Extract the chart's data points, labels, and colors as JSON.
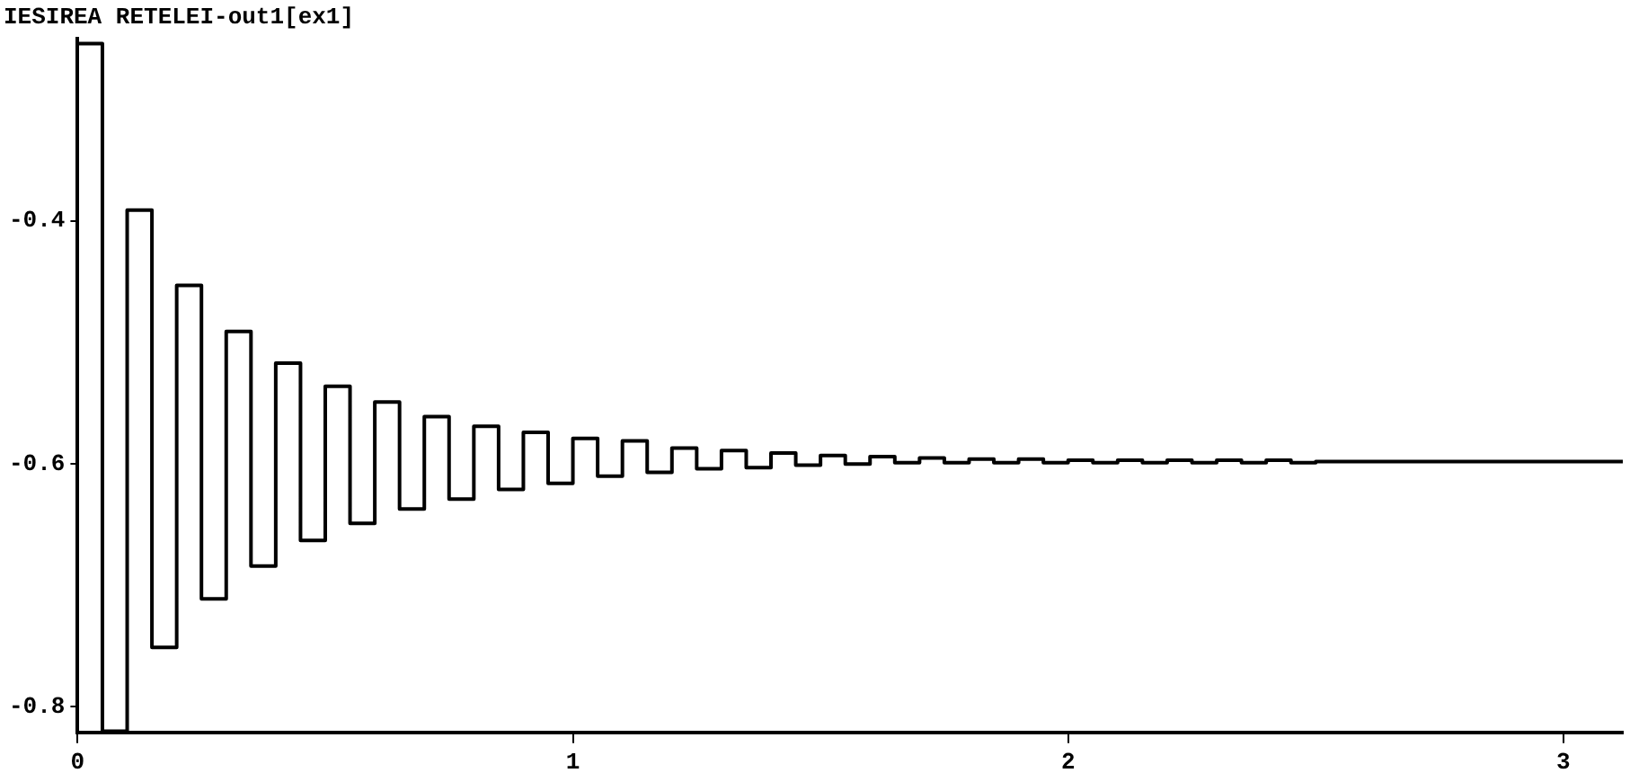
{
  "chart_data": {
    "type": "step",
    "title": "IESIREA RETELEI-out1[ex1]",
    "x": [
      0,
      0.05,
      0.1,
      0.15,
      0.2,
      0.25,
      0.3,
      0.35,
      0.4,
      0.45,
      0.5,
      0.55,
      0.6,
      0.65,
      0.7,
      0.75,
      0.8,
      0.85,
      0.9,
      0.95,
      1,
      1.05,
      1.1,
      1.15,
      1.2,
      1.25,
      1.3,
      1.35,
      1.4,
      1.45,
      1.5,
      1.55,
      1.6,
      1.65,
      1.7,
      1.75,
      1.8,
      1.85,
      1.9,
      1.95,
      2,
      2.05,
      2.1,
      2.15,
      2.2,
      2.25,
      2.3,
      2.35,
      2.4,
      2.45,
      2.5,
      3.12
    ],
    "series": [
      {
        "color": "#000000",
        "values": [
          -0.254,
          -0.82,
          -0.391,
          -0.751,
          -0.453,
          -0.711,
          -0.491,
          -0.684,
          -0.517,
          -0.663,
          -0.536,
          -0.649,
          -0.549,
          -0.637,
          -0.561,
          -0.629,
          -0.569,
          -0.621,
          -0.574,
          -0.616,
          -0.579,
          -0.61,
          -0.581,
          -0.607,
          -0.587,
          -0.604,
          -0.589,
          -0.603,
          -0.591,
          -0.601,
          -0.593,
          -0.6,
          -0.594,
          -0.599,
          -0.595,
          -0.599,
          -0.596,
          -0.599,
          -0.596,
          -0.599,
          -0.597,
          -0.599,
          -0.597,
          -0.599,
          -0.597,
          -0.599,
          -0.597,
          -0.599,
          -0.597,
          -0.599,
          -0.598,
          -0.598
        ]
      }
    ],
    "xlim": [
      0,
      3.12
    ],
    "xticks": [
      0,
      1,
      2,
      3
    ],
    "ylim": [
      -0.821,
      -0.25
    ],
    "yticks": [
      -0.8,
      -0.6,
      -0.4
    ],
    "legend": false,
    "grid": false,
    "marker": "none",
    "line_style": "solid"
  }
}
